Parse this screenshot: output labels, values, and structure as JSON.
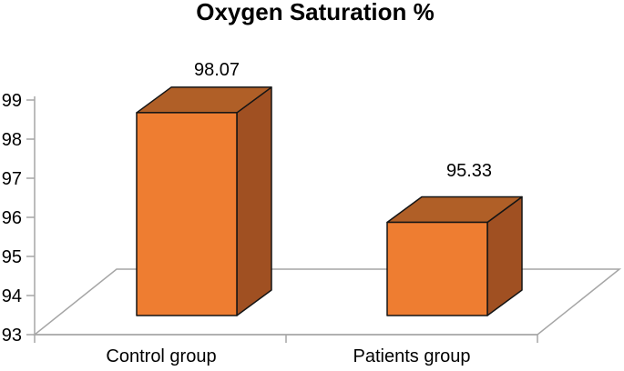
{
  "chart_data": {
    "type": "bar",
    "projection": "3d",
    "title": "Oxygen Saturation %",
    "categories": [
      "Control group",
      "Patients group"
    ],
    "values": [
      98.07,
      95.33
    ],
    "data_labels": [
      "98.07",
      "95.33"
    ],
    "xlabel": "",
    "ylabel": "",
    "ylim": [
      93,
      99
    ],
    "yticks": [
      "93",
      "94",
      "95",
      "96",
      "97",
      "98",
      "99"
    ],
    "grid": false,
    "legend": "none",
    "colors": {
      "bar_front": "#EE7D31",
      "bar_top": "#B05F27",
      "bar_side": "#A05022",
      "bar_outline": "#151515",
      "axis": "#A6A6A6",
      "text": "#000000",
      "background": "#FFFFFF"
    }
  }
}
